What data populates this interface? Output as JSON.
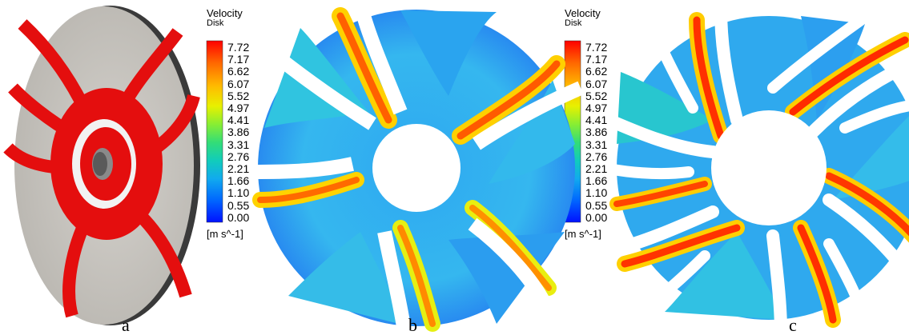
{
  "panels": [
    {
      "label": "a",
      "description": "impeller-3d-model"
    },
    {
      "label": "b",
      "description": "velocity-contour-case-b"
    },
    {
      "label": "c",
      "description": "velocity-contour-case-c"
    }
  ],
  "legends": [
    {
      "title": "Velocity",
      "subtitle": "Disk",
      "unit": "[m s^-1]",
      "ticks": [
        "7.72",
        "7.17",
        "6.62",
        "6.07",
        "5.52",
        "4.97",
        "4.41",
        "3.86",
        "3.31",
        "2.76",
        "2.21",
        "1.66",
        "1.10",
        "0.55",
        "0.00"
      ]
    },
    {
      "title": "Velocity",
      "subtitle": "Disk",
      "unit": "[m s^-1]",
      "ticks": [
        "7.72",
        "7.17",
        "6.62",
        "6.07",
        "5.52",
        "4.97",
        "4.41",
        "3.86",
        "3.31",
        "2.76",
        "2.21",
        "1.66",
        "1.10",
        "0.55",
        "0.00"
      ]
    }
  ],
  "colors": {
    "blade": "#e40e0e",
    "disk": "#c8c5c0",
    "colormap": [
      "#ff0000",
      "#ff5500",
      "#ff9900",
      "#ffcc00",
      "#ddee00",
      "#99ee22",
      "#55dd55",
      "#22ccaa",
      "#11bbdd",
      "#1199ee",
      "#0066ff",
      "#0022ff"
    ]
  }
}
